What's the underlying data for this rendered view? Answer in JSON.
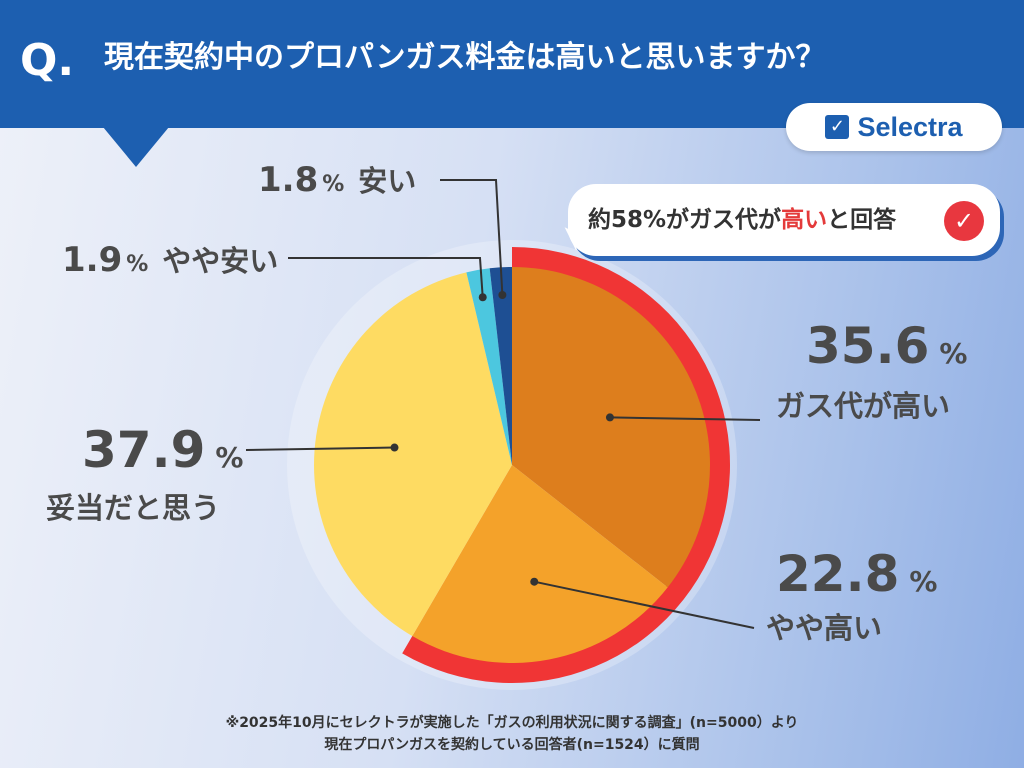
{
  "header": {
    "q_mark": "Q.",
    "question": "現在契約中のプロパンガス料金は高いと思いますか？"
  },
  "logo": {
    "check": "✓",
    "text": "Selectra",
    "icon": "checkbox-icon"
  },
  "callout": {
    "prefix": "約58%がガス代が",
    "highlight": "高い",
    "suffix": "と回答",
    "icon": "check-circle-icon"
  },
  "colors": {
    "header": "#1d5fb0",
    "accent_red": "#f03535",
    "slice_high": "#dd7e1d",
    "slice_somewhat_high": "#f4a22a",
    "slice_fair": "#fedb62",
    "slice_somewhat_cheap": "#4cc7df",
    "slice_cheap": "#1e4f93"
  },
  "unit": "%",
  "chart_data": {
    "type": "pie",
    "slices": [
      {
        "label": "ガス代が高い",
        "value": 35.6,
        "value_text": "35.6",
        "color": "#dd7e1d"
      },
      {
        "label": "やや高い",
        "value": 22.8,
        "value_text": "22.8",
        "color": "#f4a22a"
      },
      {
        "label": "妥当だと思う",
        "value": 37.9,
        "value_text": "37.9",
        "color": "#fedb62"
      },
      {
        "label": "やや安い",
        "value": 1.9,
        "value_text": "1.9",
        "color": "#4cc7df"
      },
      {
        "label": "安い",
        "value": 1.8,
        "value_text": "1.8",
        "color": "#1e4f93"
      }
    ],
    "highlighted_slices": [
      "ガス代が高い",
      "やや高い"
    ]
  },
  "footnote": {
    "line1": "※2025年10月にセレクトラが実施した「ガスの利用状況に関する調査」(n=5000）より",
    "line2": "現在プロパンガスを契約している回答者(n=1524）に質問"
  }
}
